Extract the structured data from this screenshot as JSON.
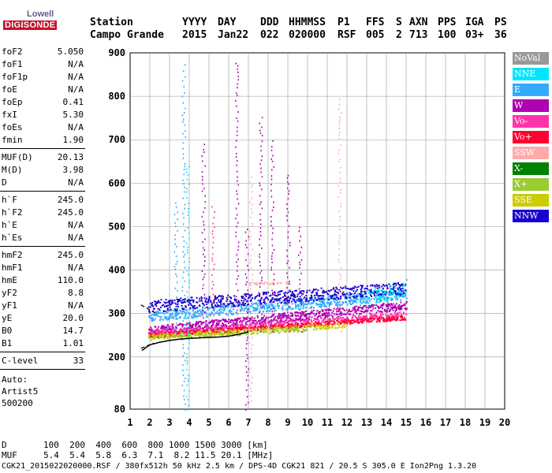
{
  "logo": {
    "top": "Lowell",
    "main": "DIGISONDE"
  },
  "header": {
    "row1": [
      "Station",
      "YYYY",
      "DAY",
      "DDD",
      "HHMMSS",
      "P1",
      "FFS",
      "S",
      "AXN",
      "PPS",
      "IGA",
      "PS"
    ],
    "row2": [
      "Campo Grande",
      "2015",
      "Jan22",
      "022",
      "020000",
      "RSF",
      "005",
      "2",
      "713",
      "100",
      "03+",
      "36"
    ]
  },
  "params": {
    "group1": [
      {
        "name": "foF2",
        "value": "5.050"
      },
      {
        "name": "foF1",
        "value": "N/A"
      },
      {
        "name": "foF1p",
        "value": "N/A"
      },
      {
        "name": "foE",
        "value": "N/A"
      },
      {
        "name": "foEp",
        "value": "0.41"
      },
      {
        "name": "fxI",
        "value": "5.30"
      },
      {
        "name": "foEs",
        "value": "N/A"
      },
      {
        "name": "fmin",
        "value": "1.90"
      }
    ],
    "group2": [
      {
        "name": "MUF(D)",
        "value": "20.13"
      },
      {
        "name": "M(D)",
        "value": "3.98"
      },
      {
        "name": "D",
        "value": "N/A"
      }
    ],
    "group3": [
      {
        "name": "h`F",
        "value": "245.0"
      },
      {
        "name": "h`F2",
        "value": "245.0"
      },
      {
        "name": "h`E",
        "value": "N/A"
      },
      {
        "name": "h`Es",
        "value": "N/A"
      }
    ],
    "group4": [
      {
        "name": "hmF2",
        "value": "245.0"
      },
      {
        "name": "hmF1",
        "value": "N/A"
      },
      {
        "name": "hmE",
        "value": "110.0"
      },
      {
        "name": "yF2",
        "value": "8.8"
      },
      {
        "name": "yF1",
        "value": "N/A"
      },
      {
        "name": "yE",
        "value": "20.0"
      },
      {
        "name": "B0",
        "value": "14.7"
      },
      {
        "name": "B1",
        "value": "1.01"
      }
    ],
    "clevel": {
      "name": "C-level",
      "value": "33"
    },
    "auto": [
      "Auto:",
      "Artist5",
      "500200"
    ]
  },
  "legend": [
    {
      "label": "NoVal",
      "color": "#999999"
    },
    {
      "label": "NNE",
      "color": "#00e5ff"
    },
    {
      "label": "E",
      "color": "#33aaff"
    },
    {
      "label": "W",
      "color": "#b000b0"
    },
    {
      "label": "Vo-",
      "color": "#ff33aa"
    },
    {
      "label": "Vo+",
      "color": "#ff0033"
    },
    {
      "label": "SSW",
      "color": "#ffaaaa"
    },
    {
      "label": "X-",
      "color": "#008000"
    },
    {
      "label": "X+",
      "color": "#99cc33"
    },
    {
      "label": "SSE",
      "color": "#cccc00"
    },
    {
      "label": "NNW",
      "color": "#1a00cc"
    }
  ],
  "footer": {
    "d_row": "D       100  200  400  600  800 1000 1500 3000 [km]",
    "muf_row": "MUF     5.4  5.4  5.8  6.3  7.1  8.2 11.5 20.1 [MHz]",
    "file_row": "CGK21_2015022020000.RSF / 380fx512h 50 kHz 2.5 km / DPS-4D CGK21 821 / 20.5 S 305.0 E Ion2Png 1.3.20"
  },
  "chart_data": {
    "type": "scatter",
    "x_ticks": [
      "1",
      "2",
      "3",
      "4",
      "5",
      "6",
      "7",
      "8",
      "9",
      "10",
      "11",
      "12",
      "13",
      "14",
      "15",
      "16",
      "17",
      "18",
      "19",
      "20"
    ],
    "y_ticks": [
      "80",
      "200",
      "300",
      "400",
      "500",
      "600",
      "700",
      "800",
      "900"
    ],
    "xlim": [
      1,
      20
    ],
    "ylim": [
      80,
      900
    ],
    "grid": true,
    "legend_position": "right",
    "traces": [
      {
        "name": "E",
        "band": [
          [
            1.9,
            295
          ],
          [
            15.0,
            345
          ]
        ],
        "spread": 12,
        "density": 1.0
      },
      {
        "name": "NNW",
        "band": [
          [
            1.9,
            318
          ],
          [
            15.0,
            360
          ]
        ],
        "spread": 14,
        "density": 0.9
      },
      {
        "name": "W",
        "band": [
          [
            1.9,
            262
          ],
          [
            15.0,
            320
          ]
        ],
        "spread": 10,
        "density": 1.0
      },
      {
        "name": "Vo-",
        "band": [
          [
            1.9,
            255
          ],
          [
            15.0,
            300
          ]
        ],
        "spread": 6,
        "density": 0.7
      },
      {
        "name": "Vo+",
        "band": [
          [
            1.9,
            250
          ],
          [
            15.0,
            292
          ]
        ],
        "spread": 5,
        "density": 0.8
      },
      {
        "name": "SSE",
        "band": [
          [
            1.9,
            248
          ],
          [
            12.0,
            275
          ]
        ],
        "spread": 6,
        "density": 0.6
      },
      {
        "name": "X+",
        "band": [
          [
            1.9,
            245
          ],
          [
            10.0,
            265
          ]
        ],
        "spread": 5,
        "density": 0.3
      },
      {
        "name": "NNE",
        "band": [
          [
            12.5,
            330
          ],
          [
            15.0,
            360
          ]
        ],
        "spread": 20,
        "density": 0.6
      },
      {
        "name": "SSW",
        "band": [
          [
            7.0,
            370
          ],
          [
            9.0,
            372
          ]
        ],
        "spread": 3,
        "density": 0.3
      }
    ],
    "vertical_streaks": [
      {
        "x": 3.7,
        "ymin": 80,
        "ymax": 880,
        "series": "E"
      },
      {
        "x": 3.9,
        "ymin": 80,
        "ymax": 650,
        "series": "NNE"
      },
      {
        "x": 3.3,
        "ymin": 260,
        "ymax": 560,
        "series": "E"
      },
      {
        "x": 4.7,
        "ymin": 260,
        "ymax": 700,
        "series": "W"
      },
      {
        "x": 5.2,
        "ymin": 260,
        "ymax": 560,
        "series": "Vo-"
      },
      {
        "x": 6.4,
        "ymin": 260,
        "ymax": 880,
        "series": "W"
      },
      {
        "x": 6.9,
        "ymin": 80,
        "ymax": 500,
        "series": "W"
      },
      {
        "x": 7.1,
        "ymin": 100,
        "ymax": 620,
        "series": "SSW"
      },
      {
        "x": 7.6,
        "ymin": 260,
        "ymax": 760,
        "series": "W"
      },
      {
        "x": 8.2,
        "ymin": 260,
        "ymax": 700,
        "series": "W"
      },
      {
        "x": 9.0,
        "ymin": 260,
        "ymax": 630,
        "series": "W"
      },
      {
        "x": 9.6,
        "ymin": 260,
        "ymax": 500,
        "series": "W"
      },
      {
        "x": 11.6,
        "ymin": 260,
        "ymax": 800,
        "series": "SSW"
      }
    ],
    "fit_curve": {
      "x": [
        1.6,
        2.0,
        2.5,
        3.0,
        3.5,
        4.0,
        4.5,
        5.0,
        5.5,
        6.0,
        6.5,
        7.0
      ],
      "y": [
        215,
        228,
        234,
        238,
        241,
        243,
        244,
        245,
        246,
        248,
        252,
        258
      ]
    },
    "fit_dashes": [
      {
        "x": [
          1.55,
          2.4
        ],
        "y": [
          320,
          298
        ]
      },
      {
        "x": [
          1.55,
          2.2
        ],
        "y": [
          220,
          232
        ]
      }
    ]
  }
}
